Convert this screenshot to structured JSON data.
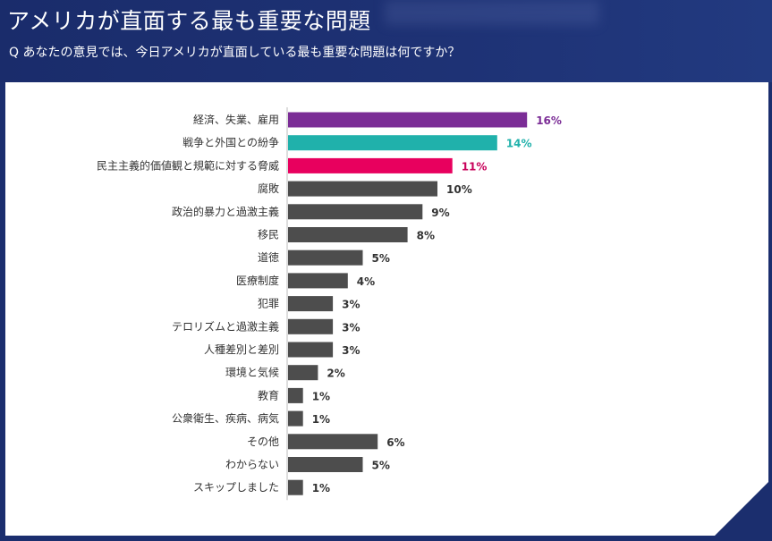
{
  "header": {
    "title": "アメリカが直面する最も重要な問題",
    "subtitle": "Q あなたの意見では、今日アメリカが直面している最も重要な問題は何ですか？"
  },
  "chart_data": {
    "type": "bar",
    "orientation": "horizontal",
    "grid": false,
    "xlim": [
      0,
      16
    ],
    "categories": [
      "経済、失業、雇用",
      "戦争と外国との紛争",
      "民主主義的価値観と規範に対する脅威",
      "腐敗",
      "政治的暴力と過激主義",
      "移民",
      "道徳",
      "医療制度",
      "犯罪",
      "テロリズムと過激主義",
      "人種差別と差別",
      "環境と気候",
      "教育",
      "公衆衛生、疾病、病気",
      "その他",
      "わからない",
      "スキップしました"
    ],
    "values": [
      16,
      14,
      11,
      10,
      9,
      8,
      5,
      4,
      3,
      3,
      3,
      2,
      1,
      1,
      6,
      5,
      1
    ],
    "value_labels": [
      "16%",
      "14%",
      "11%",
      "10%",
      "9%",
      "8%",
      "5%",
      "4%",
      "3%",
      "3%",
      "3%",
      "2%",
      "1%",
      "1%",
      "6%",
      "5%",
      "1%"
    ],
    "bar_colors": [
      "#7b2d96",
      "#20b1ab",
      "#e8005e",
      "#4d4d4d",
      "#4d4d4d",
      "#4d4d4d",
      "#4d4d4d",
      "#4d4d4d",
      "#4d4d4d",
      "#4d4d4d",
      "#4d4d4d",
      "#4d4d4d",
      "#4d4d4d",
      "#4d4d4d",
      "#4d4d4d",
      "#4d4d4d",
      "#4d4d4d"
    ],
    "label_colors": [
      "#7b2d96",
      "#20b1ab",
      "#c8005a",
      "#333333",
      "#333333",
      "#333333",
      "#333333",
      "#333333",
      "#333333",
      "#333333",
      "#333333",
      "#333333",
      "#333333",
      "#333333",
      "#333333",
      "#333333",
      "#333333"
    ]
  }
}
